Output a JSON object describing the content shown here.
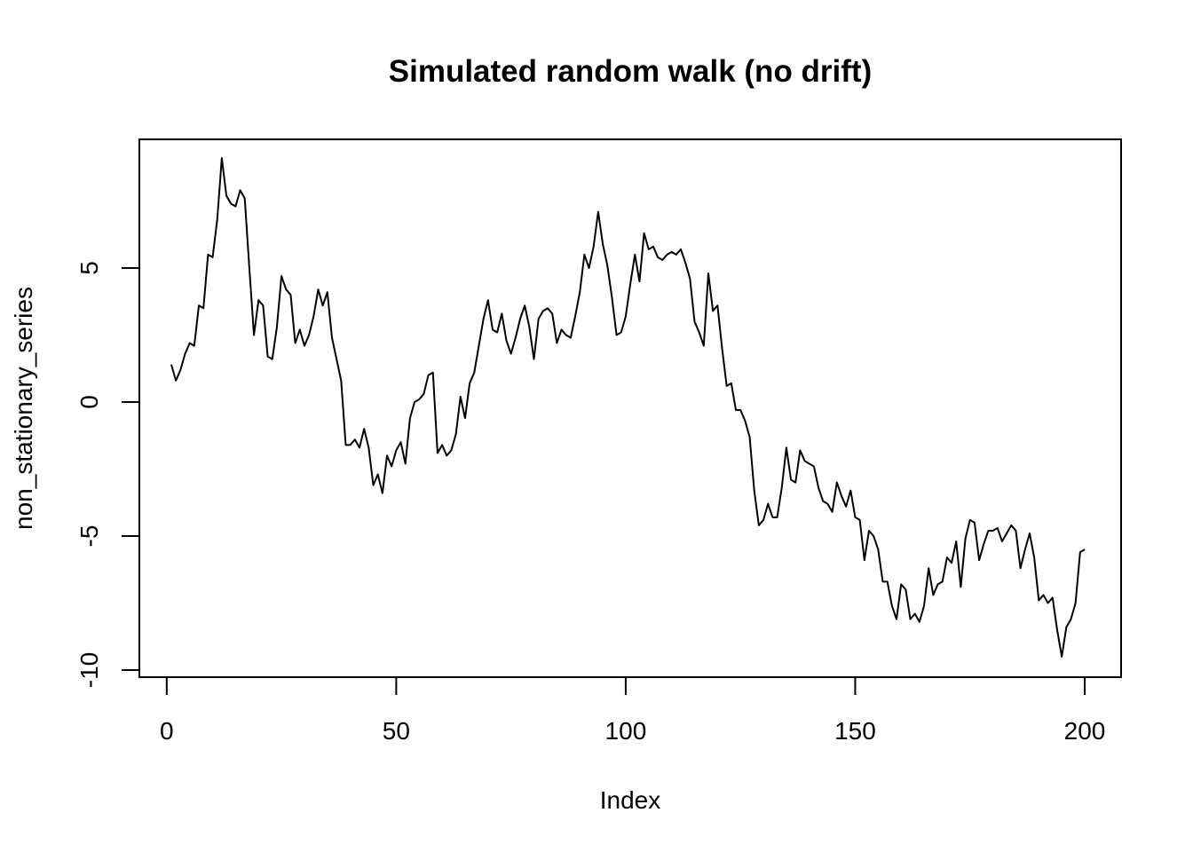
{
  "chart_data": {
    "type": "line",
    "title": "Simulated random walk (no drift)",
    "xlabel": "Index",
    "ylabel": "non_stationary_series",
    "xlim": [
      1,
      200
    ],
    "ylim": [
      -10,
      9
    ],
    "x_ticks": [
      0,
      50,
      100,
      150,
      200
    ],
    "y_ticks": [
      -10,
      -5,
      0,
      5
    ],
    "grid": false,
    "legend": "none",
    "line_color": "#000000",
    "series": [
      {
        "values": [
          1.4,
          0.8,
          1.2,
          1.8,
          2.2,
          2.1,
          3.6,
          3.5,
          5.5,
          5.4,
          6.8,
          9.1,
          7.7,
          7.4,
          7.3,
          7.9,
          7.6,
          5.0,
          2.5,
          3.8,
          3.6,
          1.7,
          1.6,
          2.8,
          4.7,
          4.2,
          4.0,
          2.2,
          2.7,
          2.1,
          2.5,
          3.2,
          4.2,
          3.6,
          4.1,
          2.4,
          1.6,
          0.8,
          -1.6,
          -1.6,
          -1.4,
          -1.7,
          -1.0,
          -1.7,
          -3.1,
          -2.7,
          -3.4,
          -2.0,
          -2.4,
          -1.8,
          -1.5,
          -2.3,
          -0.6,
          0.0,
          0.1,
          0.3,
          1.0,
          1.1,
          -1.9,
          -1.6,
          -2.0,
          -1.8,
          -1.2,
          0.2,
          -0.6,
          0.7,
          1.1,
          2.1,
          3.1,
          3.8,
          2.7,
          2.6,
          3.3,
          2.3,
          1.8,
          2.4,
          3.1,
          3.6,
          2.8,
          1.6,
          3.1,
          3.4,
          3.5,
          3.3,
          2.2,
          2.7,
          2.5,
          2.4,
          3.2,
          4.1,
          5.5,
          5.0,
          5.8,
          7.1,
          5.9,
          5.1,
          3.9,
          2.5,
          2.6,
          3.2,
          4.4,
          5.5,
          4.5,
          6.3,
          5.7,
          5.8,
          5.4,
          5.3,
          5.5,
          5.6,
          5.5,
          5.7,
          5.2,
          4.6,
          3.0,
          2.6,
          2.1,
          4.8,
          3.4,
          3.6,
          2.0,
          0.6,
          0.7,
          -0.3,
          -0.3,
          -0.7,
          -1.3,
          -3.3,
          -4.6,
          -4.4,
          -3.8,
          -4.3,
          -4.3,
          -3.2,
          -1.7,
          -2.9,
          -3.0,
          -1.8,
          -2.2,
          -2.3,
          -2.4,
          -3.2,
          -3.7,
          -3.8,
          -4.1,
          -3.0,
          -3.5,
          -3.9,
          -3.3,
          -4.3,
          -4.4,
          -5.9,
          -4.8,
          -5.0,
          -5.5,
          -6.7,
          -6.7,
          -7.6,
          -8.1,
          -6.8,
          -7.0,
          -8.1,
          -7.9,
          -8.2,
          -7.6,
          -6.2,
          -7.2,
          -6.8,
          -6.7,
          -5.8,
          -6.0,
          -5.2,
          -6.9,
          -5.1,
          -4.4,
          -4.5,
          -5.9,
          -5.3,
          -4.8,
          -4.8,
          -4.7,
          -5.2,
          -4.9,
          -4.6,
          -4.8,
          -6.2,
          -5.5,
          -4.9,
          -5.8,
          -7.4,
          -7.2,
          -7.5,
          -7.3,
          -8.5,
          -9.5,
          -8.4,
          -8.1,
          -7.5,
          -5.6,
          -5.5
        ]
      }
    ]
  }
}
